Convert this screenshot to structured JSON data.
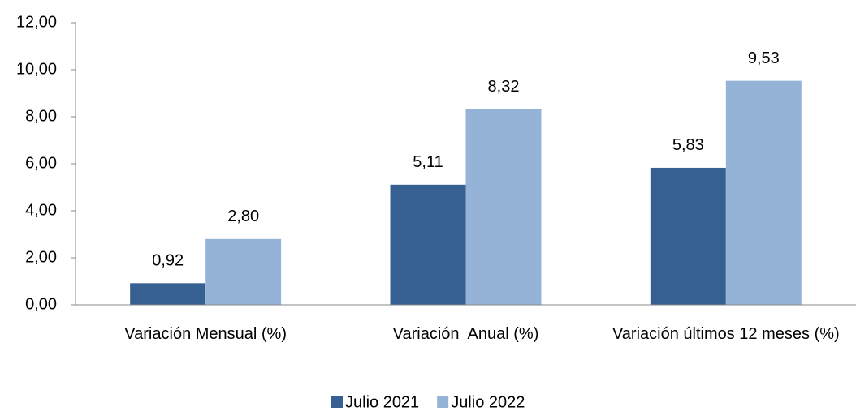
{
  "chart_data": {
    "type": "bar",
    "categories": [
      "Variación Mensual (%)",
      "Variación  Anual (%)",
      "Variación últimos 12 meses (%)"
    ],
    "series": [
      {
        "name": "Julio 2021",
        "color": "#366092",
        "values": [
          0.92,
          5.11,
          5.83
        ],
        "value_labels": [
          "0,92",
          "5,11",
          "5,83"
        ]
      },
      {
        "name": "Julio 2022",
        "color": "#95b3d7",
        "values": [
          2.8,
          8.32,
          9.53
        ],
        "value_labels": [
          "2,80",
          "8,32",
          "9,53"
        ]
      }
    ],
    "ylim": [
      0,
      12
    ],
    "yticks": [
      {
        "value": 0,
        "label": "0,00"
      },
      {
        "value": 2,
        "label": "2,00"
      },
      {
        "value": 4,
        "label": "4,00"
      },
      {
        "value": 6,
        "label": "6,00"
      },
      {
        "value": 8,
        "label": "8,00"
      },
      {
        "value": 10,
        "label": "10,00"
      },
      {
        "value": 12,
        "label": "12,00"
      }
    ],
    "grid": false,
    "legend": "bottom"
  }
}
